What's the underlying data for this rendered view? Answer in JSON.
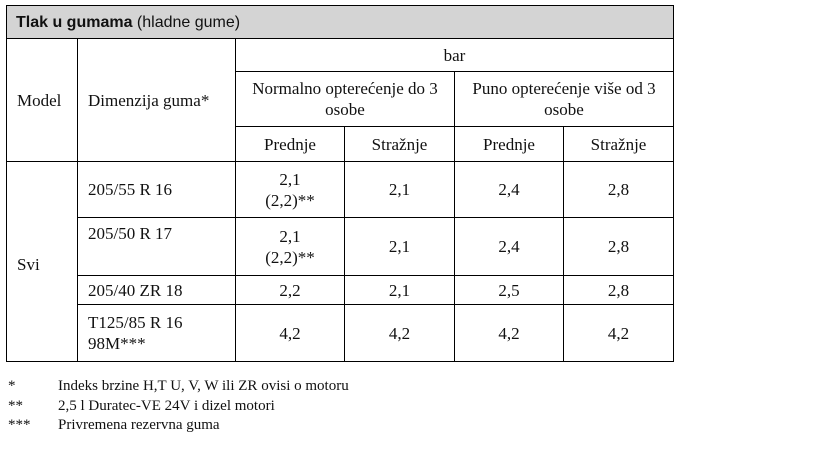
{
  "table": {
    "title_bold": "Tlak u gumama",
    "title_rest": " (hladne gume)",
    "unit": "bar",
    "col_model": "Model",
    "col_dimension": "Dimenzija guma*",
    "load_normal": "Normalno opterećenje do 3 osobe",
    "load_full": "Puno opterećenje više od 3 osobe",
    "front": "Prednje",
    "rear": "Stražnje",
    "model_value": "Svi",
    "rows": [
      {
        "dim_line1": "205/55 R 16",
        "dim_line2": "",
        "n_front_1": "2,1",
        "n_front_2": "(2,2)**",
        "n_rear": "2,1",
        "f_front": "2,4",
        "f_rear": "2,8"
      },
      {
        "dim_line1": "205/50 R 17",
        "dim_line2": "",
        "n_front_1": "2,1",
        "n_front_2": "(2,2)**",
        "n_rear": "2,1",
        "f_front": "2,4",
        "f_rear": "2,8"
      },
      {
        "dim_line1": "205/40 ZR 18",
        "dim_line2": "",
        "n_front_1": "2,2",
        "n_front_2": "",
        "n_rear": "2,1",
        "f_front": "2,5",
        "f_rear": "2,8"
      },
      {
        "dim_line1": "T125/85 R 16",
        "dim_line2": "98M***",
        "n_front_1": "4,2",
        "n_front_2": "",
        "n_rear": "4,2",
        "f_front": "4,2",
        "f_rear": "4,2"
      }
    ]
  },
  "footnotes": [
    {
      "mark": "*",
      "text": "Indeks brzine H,T U, V, W ili ZR ovisi o motoru"
    },
    {
      "mark": "**",
      "text": "2,5 l Duratec-VE 24V i dizel motori"
    },
    {
      "mark": "***",
      "text": "Privremena rezervna guma"
    }
  ]
}
